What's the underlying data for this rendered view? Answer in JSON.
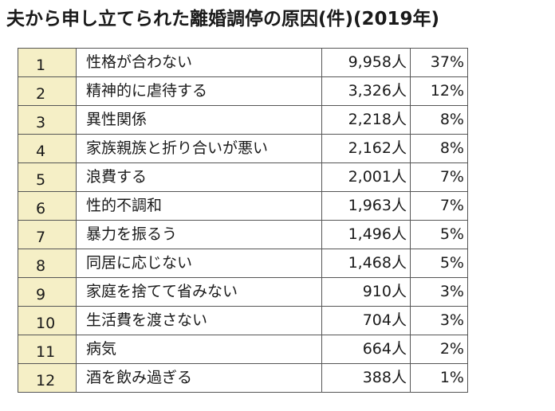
{
  "chart_data": {
    "type": "table",
    "title": "夫から申し立てられた離婚調停の原因(件)(2019年)",
    "unit_label": "人",
    "rows": [
      {
        "rank": "1",
        "cause": "性格が合わない",
        "count": "9,958",
        "percent": "37%"
      },
      {
        "rank": "2",
        "cause": "精神的に虐待する",
        "count": "3,326",
        "percent": "12%"
      },
      {
        "rank": "3",
        "cause": "異性関係",
        "count": "2,218",
        "percent": "8%"
      },
      {
        "rank": "4",
        "cause": "家族親族と折り合いが悪い",
        "count": "2,162",
        "percent": "8%"
      },
      {
        "rank": "5",
        "cause": "浪費する",
        "count": "2,001",
        "percent": "7%"
      },
      {
        "rank": "6",
        "cause": "性的不調和",
        "count": "1,963",
        "percent": "7%"
      },
      {
        "rank": "7",
        "cause": "暴力を振るう",
        "count": "1,496",
        "percent": "5%"
      },
      {
        "rank": "8",
        "cause": "同居に応じない",
        "count": "1,468",
        "percent": "5%"
      },
      {
        "rank": "9",
        "cause": "家庭を捨てて省みない",
        "count": "910",
        "percent": "3%"
      },
      {
        "rank": "10",
        "cause": "生活費を渡さない",
        "count": "704",
        "percent": "3%"
      },
      {
        "rank": "11",
        "cause": "病気",
        "count": "664",
        "percent": "2%"
      },
      {
        "rank": "12",
        "cause": "酒を飲み過ぎる",
        "count": "388",
        "percent": "1%"
      }
    ]
  },
  "colors": {
    "rank_cell_bg": "#f5efc6",
    "border": "#555555",
    "text": "#1a1a1a"
  }
}
